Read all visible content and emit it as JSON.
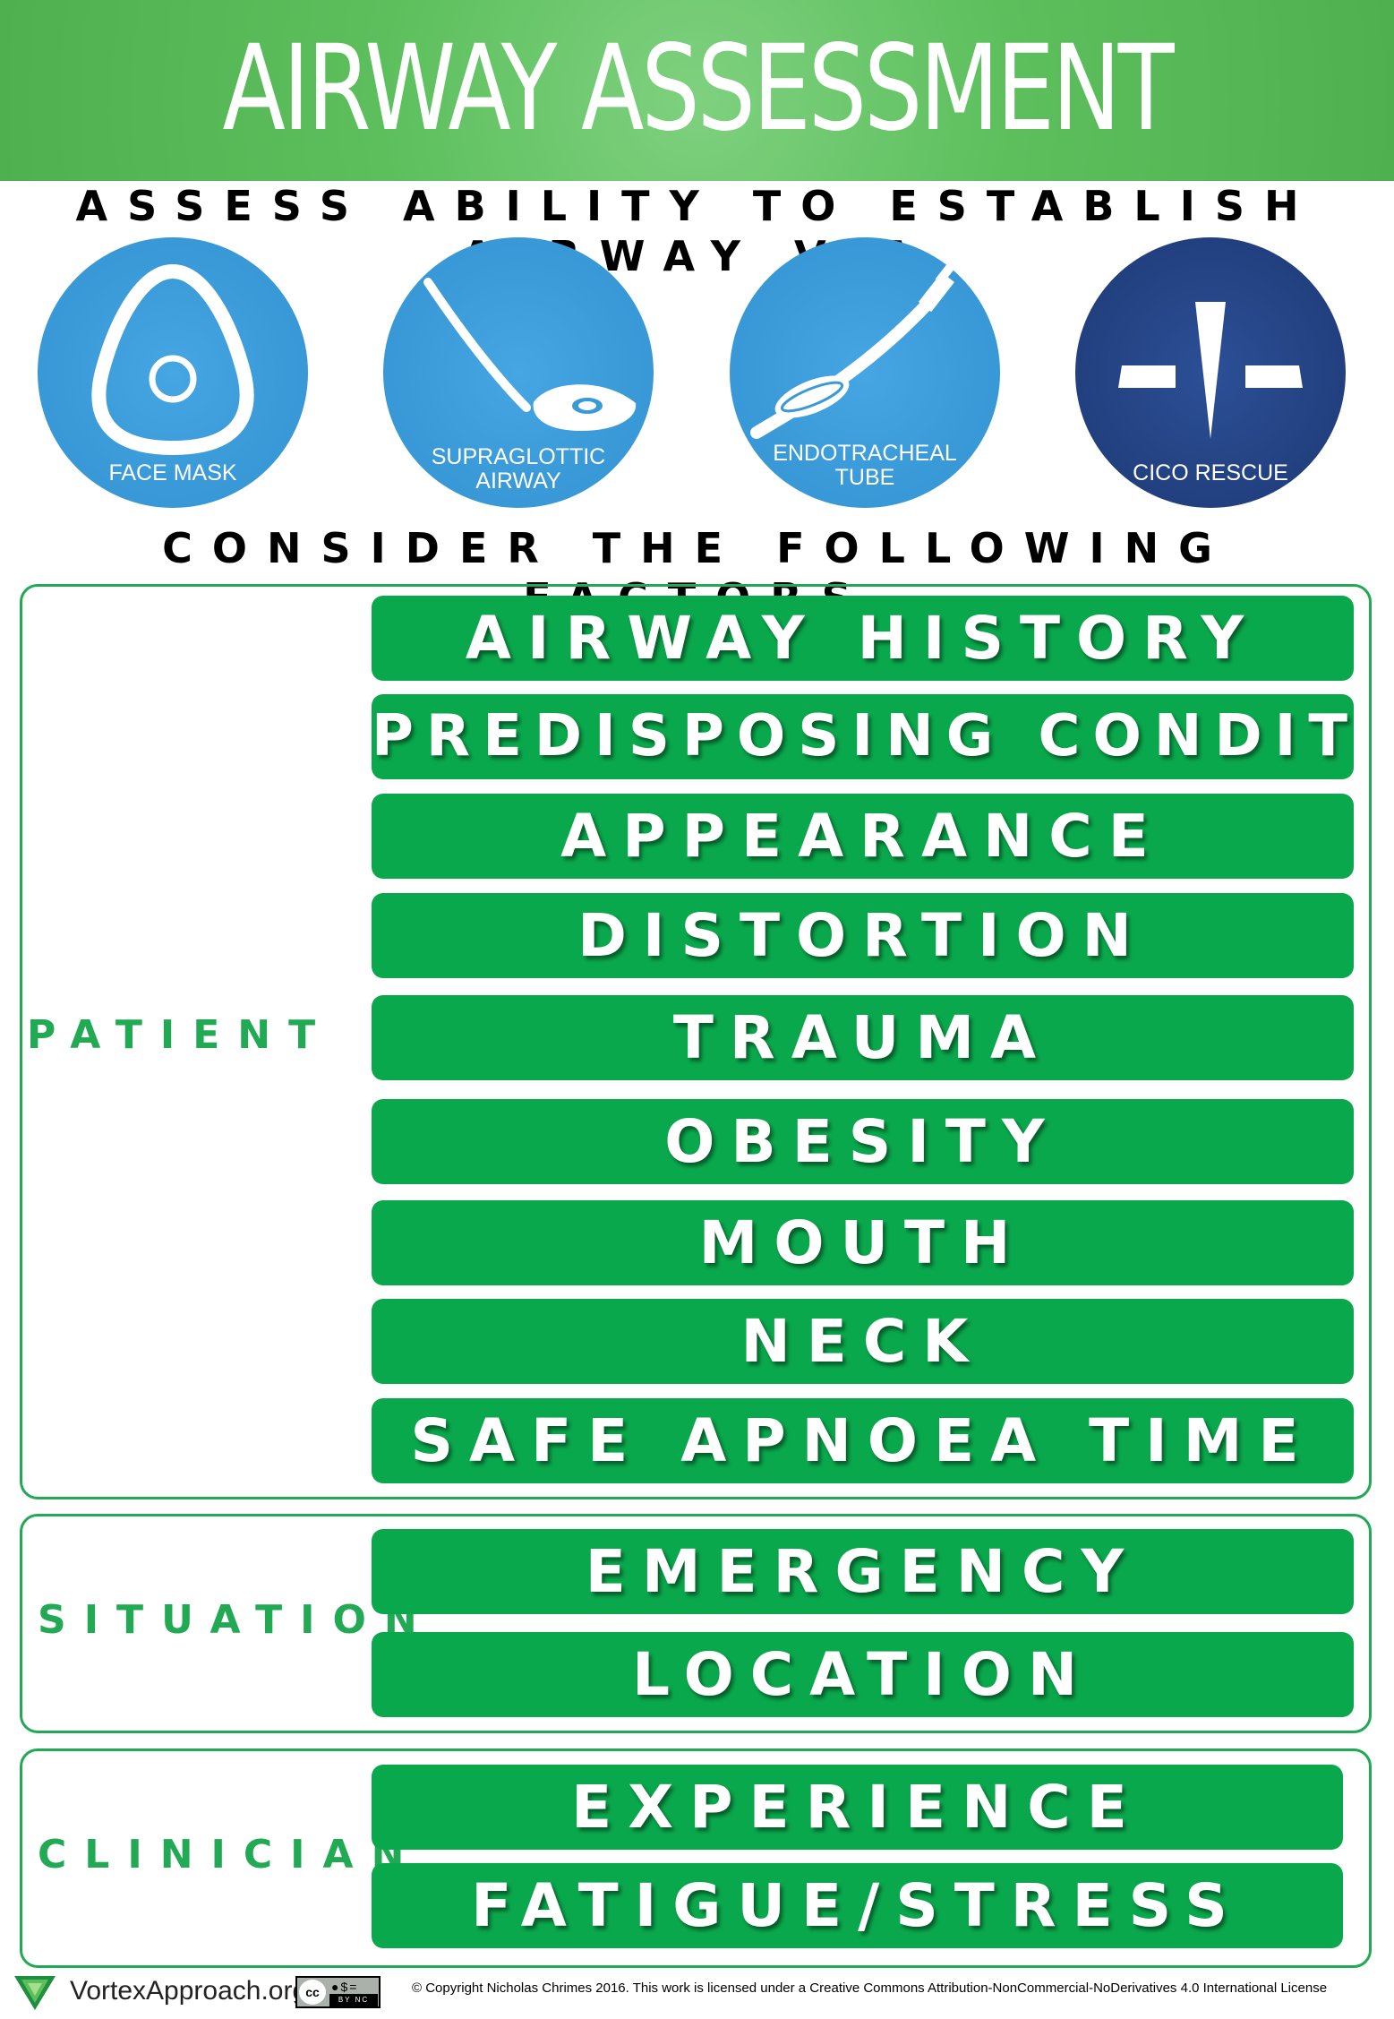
{
  "header": {
    "title": "AIRWAY ASSESSMENT"
  },
  "assess_heading": "ASSESS ABILITY TO ESTABLISH AIRWAY VIA",
  "methods": [
    {
      "line1": "FACE MASK",
      "line2": "",
      "icon": "face-mask-icon"
    },
    {
      "line1": "SUPRAGLOTTIC",
      "line2": "AIRWAY",
      "icon": "supraglottic-airway-icon"
    },
    {
      "line1": "ENDOTRACHEAL",
      "line2": "TUBE",
      "icon": "endotracheal-tube-icon"
    },
    {
      "line1": "CICO RESCUE",
      "line2": "",
      "icon": "cico-rescue-icon"
    }
  ],
  "consider_heading": "CONSIDER THE FOLLOWING FACTORS",
  "groups": {
    "patient": {
      "label": "PATIENT",
      "factors": [
        "AIRWAY HISTORY",
        "PREDISPOSING CONDITIONS",
        "APPEARANCE",
        "DISTORTION",
        "TRAUMA",
        "OBESITY",
        "MOUTH",
        "NECK",
        "SAFE APNOEA TIME"
      ]
    },
    "situation": {
      "label": "SITUATION",
      "factors": [
        "EMERGENCY",
        "LOCATION"
      ]
    },
    "clinician": {
      "label": "CLINICIAN",
      "factors": [
        "EXPERIENCE",
        "FATIGUE/STRESS"
      ]
    }
  },
  "footer": {
    "site": "VortexApproach.org",
    "license_badge": {
      "cc": "cc",
      "tags": "BY NC ND"
    },
    "copyright": "© Copyright Nicholas Chrimes 2016. This work is licensed under a Creative Commons Attribution-NonCommercial-NoDerivatives 4.0 International License"
  },
  "colors": {
    "header_green": "#5cbf5c",
    "factor_green": "#0aa84c",
    "label_green": "#21a954",
    "method_blue": "#3a9ad8",
    "rescue_navy": "#22407f"
  }
}
